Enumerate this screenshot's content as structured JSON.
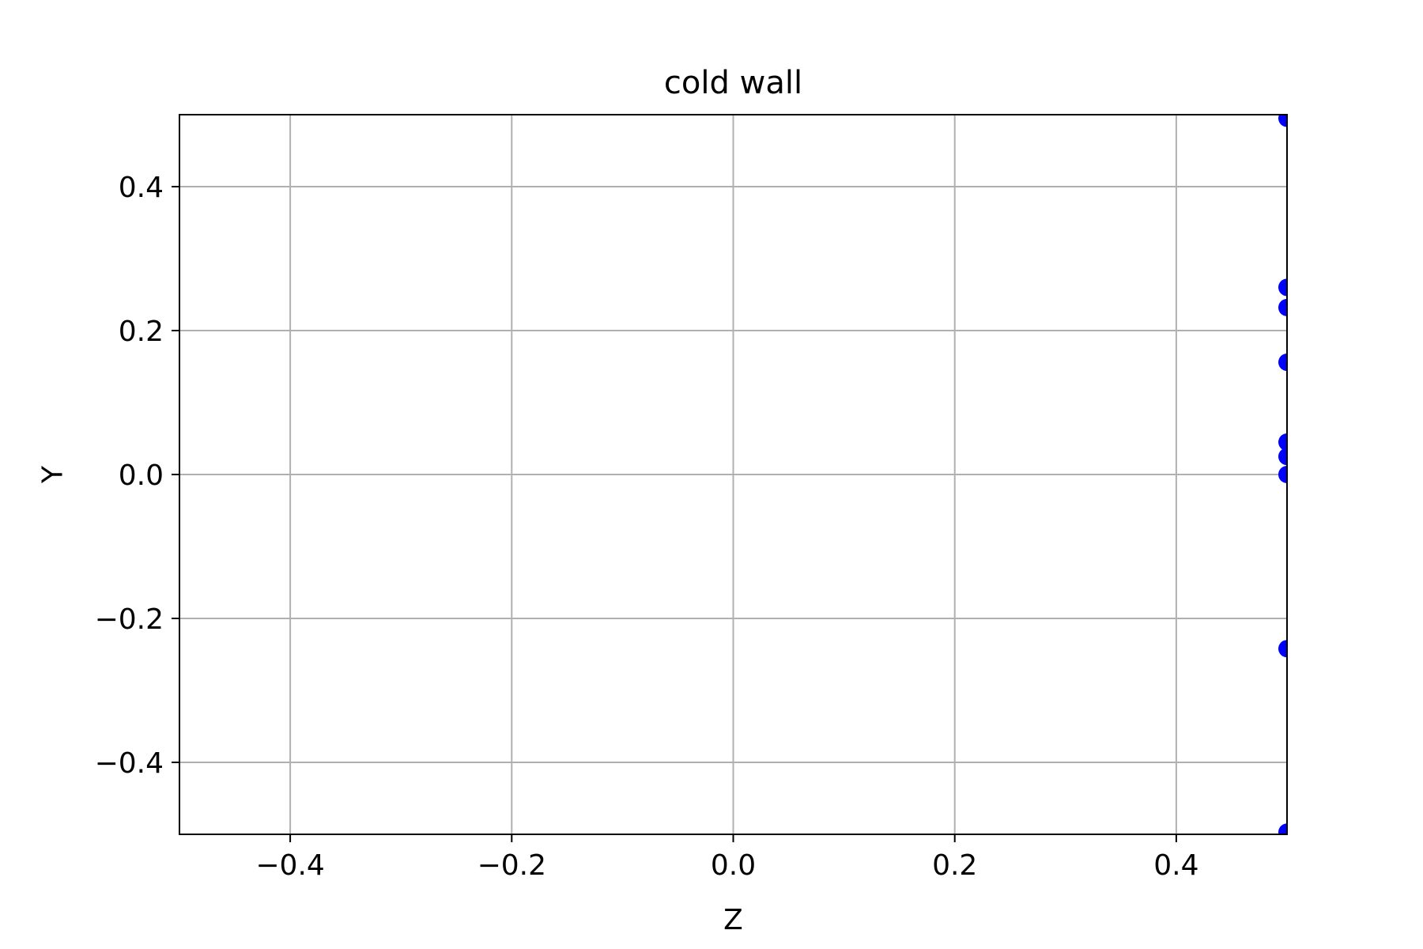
{
  "chart_data": {
    "type": "scatter",
    "title": "cold wall",
    "xlabel": "Z",
    "ylabel": "Y",
    "xlim": [
      -0.5,
      0.5
    ],
    "ylim": [
      -0.5,
      0.5
    ],
    "x_ticks": [
      -0.4,
      -0.2,
      0.0,
      0.2,
      0.4
    ],
    "y_ticks": [
      -0.4,
      -0.2,
      0.0,
      0.2,
      0.4
    ],
    "x_tick_labels": [
      "−0.4",
      "−0.2",
      "0.0",
      "0.2",
      "0.4"
    ],
    "y_tick_labels": [
      "−0.4",
      "−0.2",
      "0.0",
      "0.2",
      "0.4"
    ],
    "grid": true,
    "marker_color": "#0000ff",
    "series": [
      {
        "points": [
          {
            "x": 0.5,
            "y": 0.495
          },
          {
            "x": 0.5,
            "y": 0.26
          },
          {
            "x": 0.5,
            "y": 0.232
          },
          {
            "x": 0.5,
            "y": 0.156
          },
          {
            "x": 0.5,
            "y": 0.045
          },
          {
            "x": 0.5,
            "y": 0.025
          },
          {
            "x": 0.5,
            "y": 0.0
          },
          {
            "x": 0.5,
            "y": -0.242
          },
          {
            "x": 0.5,
            "y": -0.497
          }
        ]
      }
    ]
  }
}
